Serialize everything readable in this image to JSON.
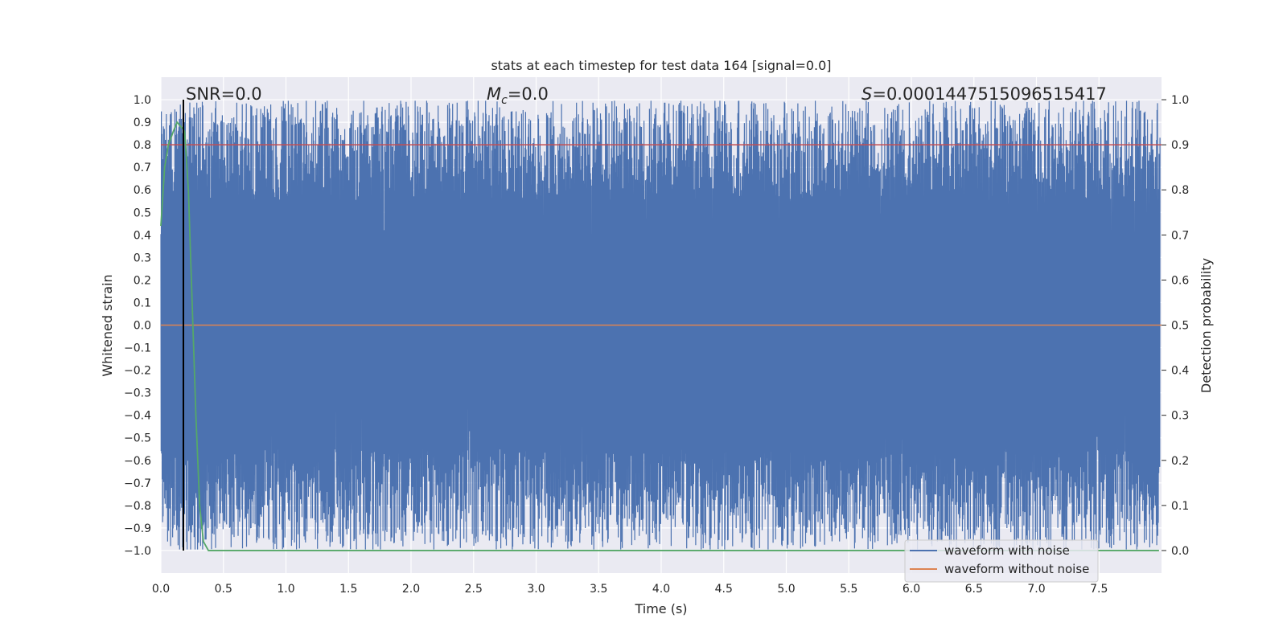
{
  "chart_data": {
    "type": "line",
    "title": "stats at each timestep for test data 164 [signal=0.0]",
    "xlabel": "Time (s)",
    "ylabel": "Whitened strain",
    "ylabel_right": "Detection probability",
    "xlim": [
      0.0,
      8.0
    ],
    "ylim": [
      -1.1,
      1.1
    ],
    "ylim_right": [
      -0.05,
      1.05
    ],
    "x_ticks": [
      0.0,
      0.5,
      1.0,
      1.5,
      2.0,
      2.5,
      3.0,
      3.5,
      4.0,
      4.5,
      5.0,
      5.5,
      6.0,
      6.5,
      7.0,
      7.5
    ],
    "x_tick_labels": [
      "0.0",
      "0.5",
      "1.0",
      "1.5",
      "2.0",
      "2.5",
      "3.0",
      "3.5",
      "4.0",
      "4.5",
      "5.0",
      "5.5",
      "6.0",
      "6.5",
      "7.0",
      "7.5"
    ],
    "y_ticks": [
      1.0,
      0.9,
      0.8,
      0.7,
      0.6,
      0.5,
      0.4,
      0.3,
      0.2,
      0.1,
      0.0,
      -0.1,
      -0.2,
      -0.3,
      -0.4,
      -0.5,
      -0.6,
      -0.7,
      -0.8,
      -0.9,
      -1.0
    ],
    "y_tick_labels": [
      "1.0",
      "0.9",
      "0.8",
      "0.7",
      "0.6",
      "0.5",
      "0.4",
      "0.3",
      "0.2",
      "0.1",
      "0.0",
      "−0.1",
      "−0.2",
      "−0.3",
      "−0.4",
      "−0.5",
      "−0.6",
      "−0.7",
      "−0.8",
      "−0.9",
      "−1.0"
    ],
    "y_ticks_right": [
      1.0,
      0.9,
      0.8,
      0.7,
      0.6,
      0.5,
      0.4,
      0.3,
      0.2,
      0.1,
      0.0
    ],
    "y_tick_labels_right": [
      "1.0",
      "0.9",
      "0.8",
      "0.7",
      "0.6",
      "0.5",
      "0.4",
      "0.3",
      "0.2",
      "0.1",
      "0.0"
    ],
    "grid": true,
    "legend_position": "lower-right",
    "annotations": {
      "snr": "SNR=0.0",
      "mc_symbol": "M",
      "mc_subscript": "c",
      "mc_value": "=0.0",
      "s_symbol": "S",
      "s_value": "=0.0001447515096515417"
    },
    "series": [
      {
        "name": "waveform with noise",
        "color": "#4c72b0",
        "axis": "left",
        "style": "dense noise spanning approximately -1.0 to 1.0"
      },
      {
        "name": "waveform without noise",
        "color": "#dd8452",
        "axis": "left",
        "x": [
          0.0,
          8.0
        ],
        "values": [
          0.0,
          0.0
        ]
      },
      {
        "axis": "right",
        "color": "#55a868",
        "x": [
          0.0,
          0.03,
          0.06,
          0.1,
          0.13,
          0.16,
          0.19,
          0.22,
          0.25,
          0.28,
          0.31,
          0.34,
          0.38,
          0.5,
          1.0,
          2.0,
          3.0,
          4.0,
          5.0,
          6.0,
          7.0,
          7.98
        ],
        "values": [
          0.72,
          0.85,
          0.9,
          0.93,
          0.95,
          0.94,
          0.93,
          0.8,
          0.55,
          0.3,
          0.1,
          0.02,
          0.0,
          0.0,
          0.0,
          0.0,
          0.0,
          0.0,
          0.0,
          0.0,
          0.0,
          0.0
        ]
      },
      {
        "axis": "right",
        "color": "#c44e52",
        "x": [
          0.0,
          8.0
        ],
        "values": [
          0.9,
          0.9
        ]
      }
    ],
    "vertical_lines": [
      {
        "x": 0.18,
        "color": "#000000"
      }
    ]
  }
}
